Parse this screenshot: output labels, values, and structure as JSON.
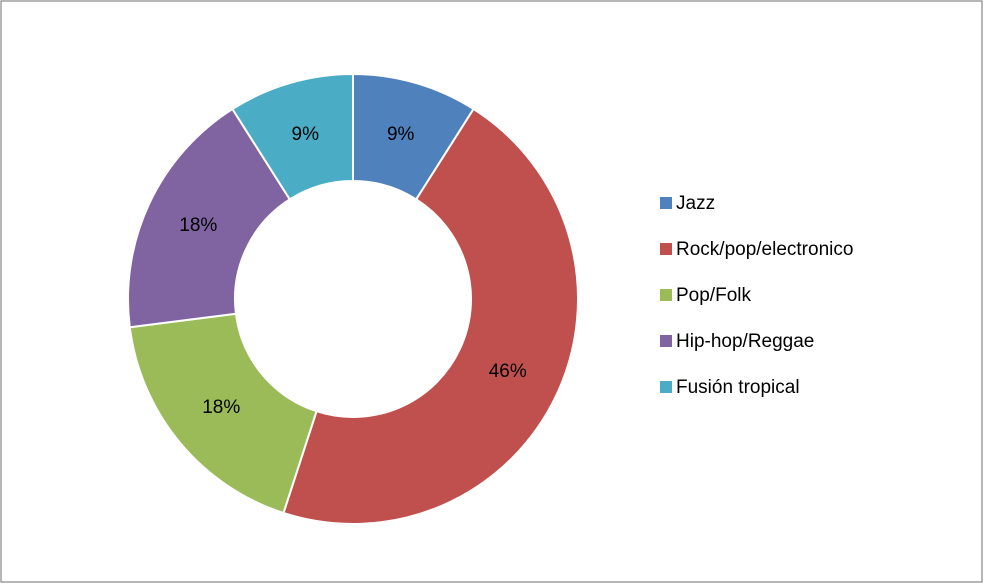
{
  "chart_data": {
    "type": "doughnut",
    "categories": [
      "Jazz",
      "Rock/pop/electronico",
      "Pop/Folk",
      "Hip-hop/Reggae",
      "Fusión tropical"
    ],
    "values": [
      9,
      46,
      18,
      18,
      9
    ],
    "value_labels": [
      "9%",
      "46%",
      "18%",
      "18%",
      "9%"
    ],
    "colors": [
      "#4f81bd",
      "#c0504d",
      "#9bbb59",
      "#8064a2",
      "#4bacc6"
    ],
    "legend": "right"
  }
}
